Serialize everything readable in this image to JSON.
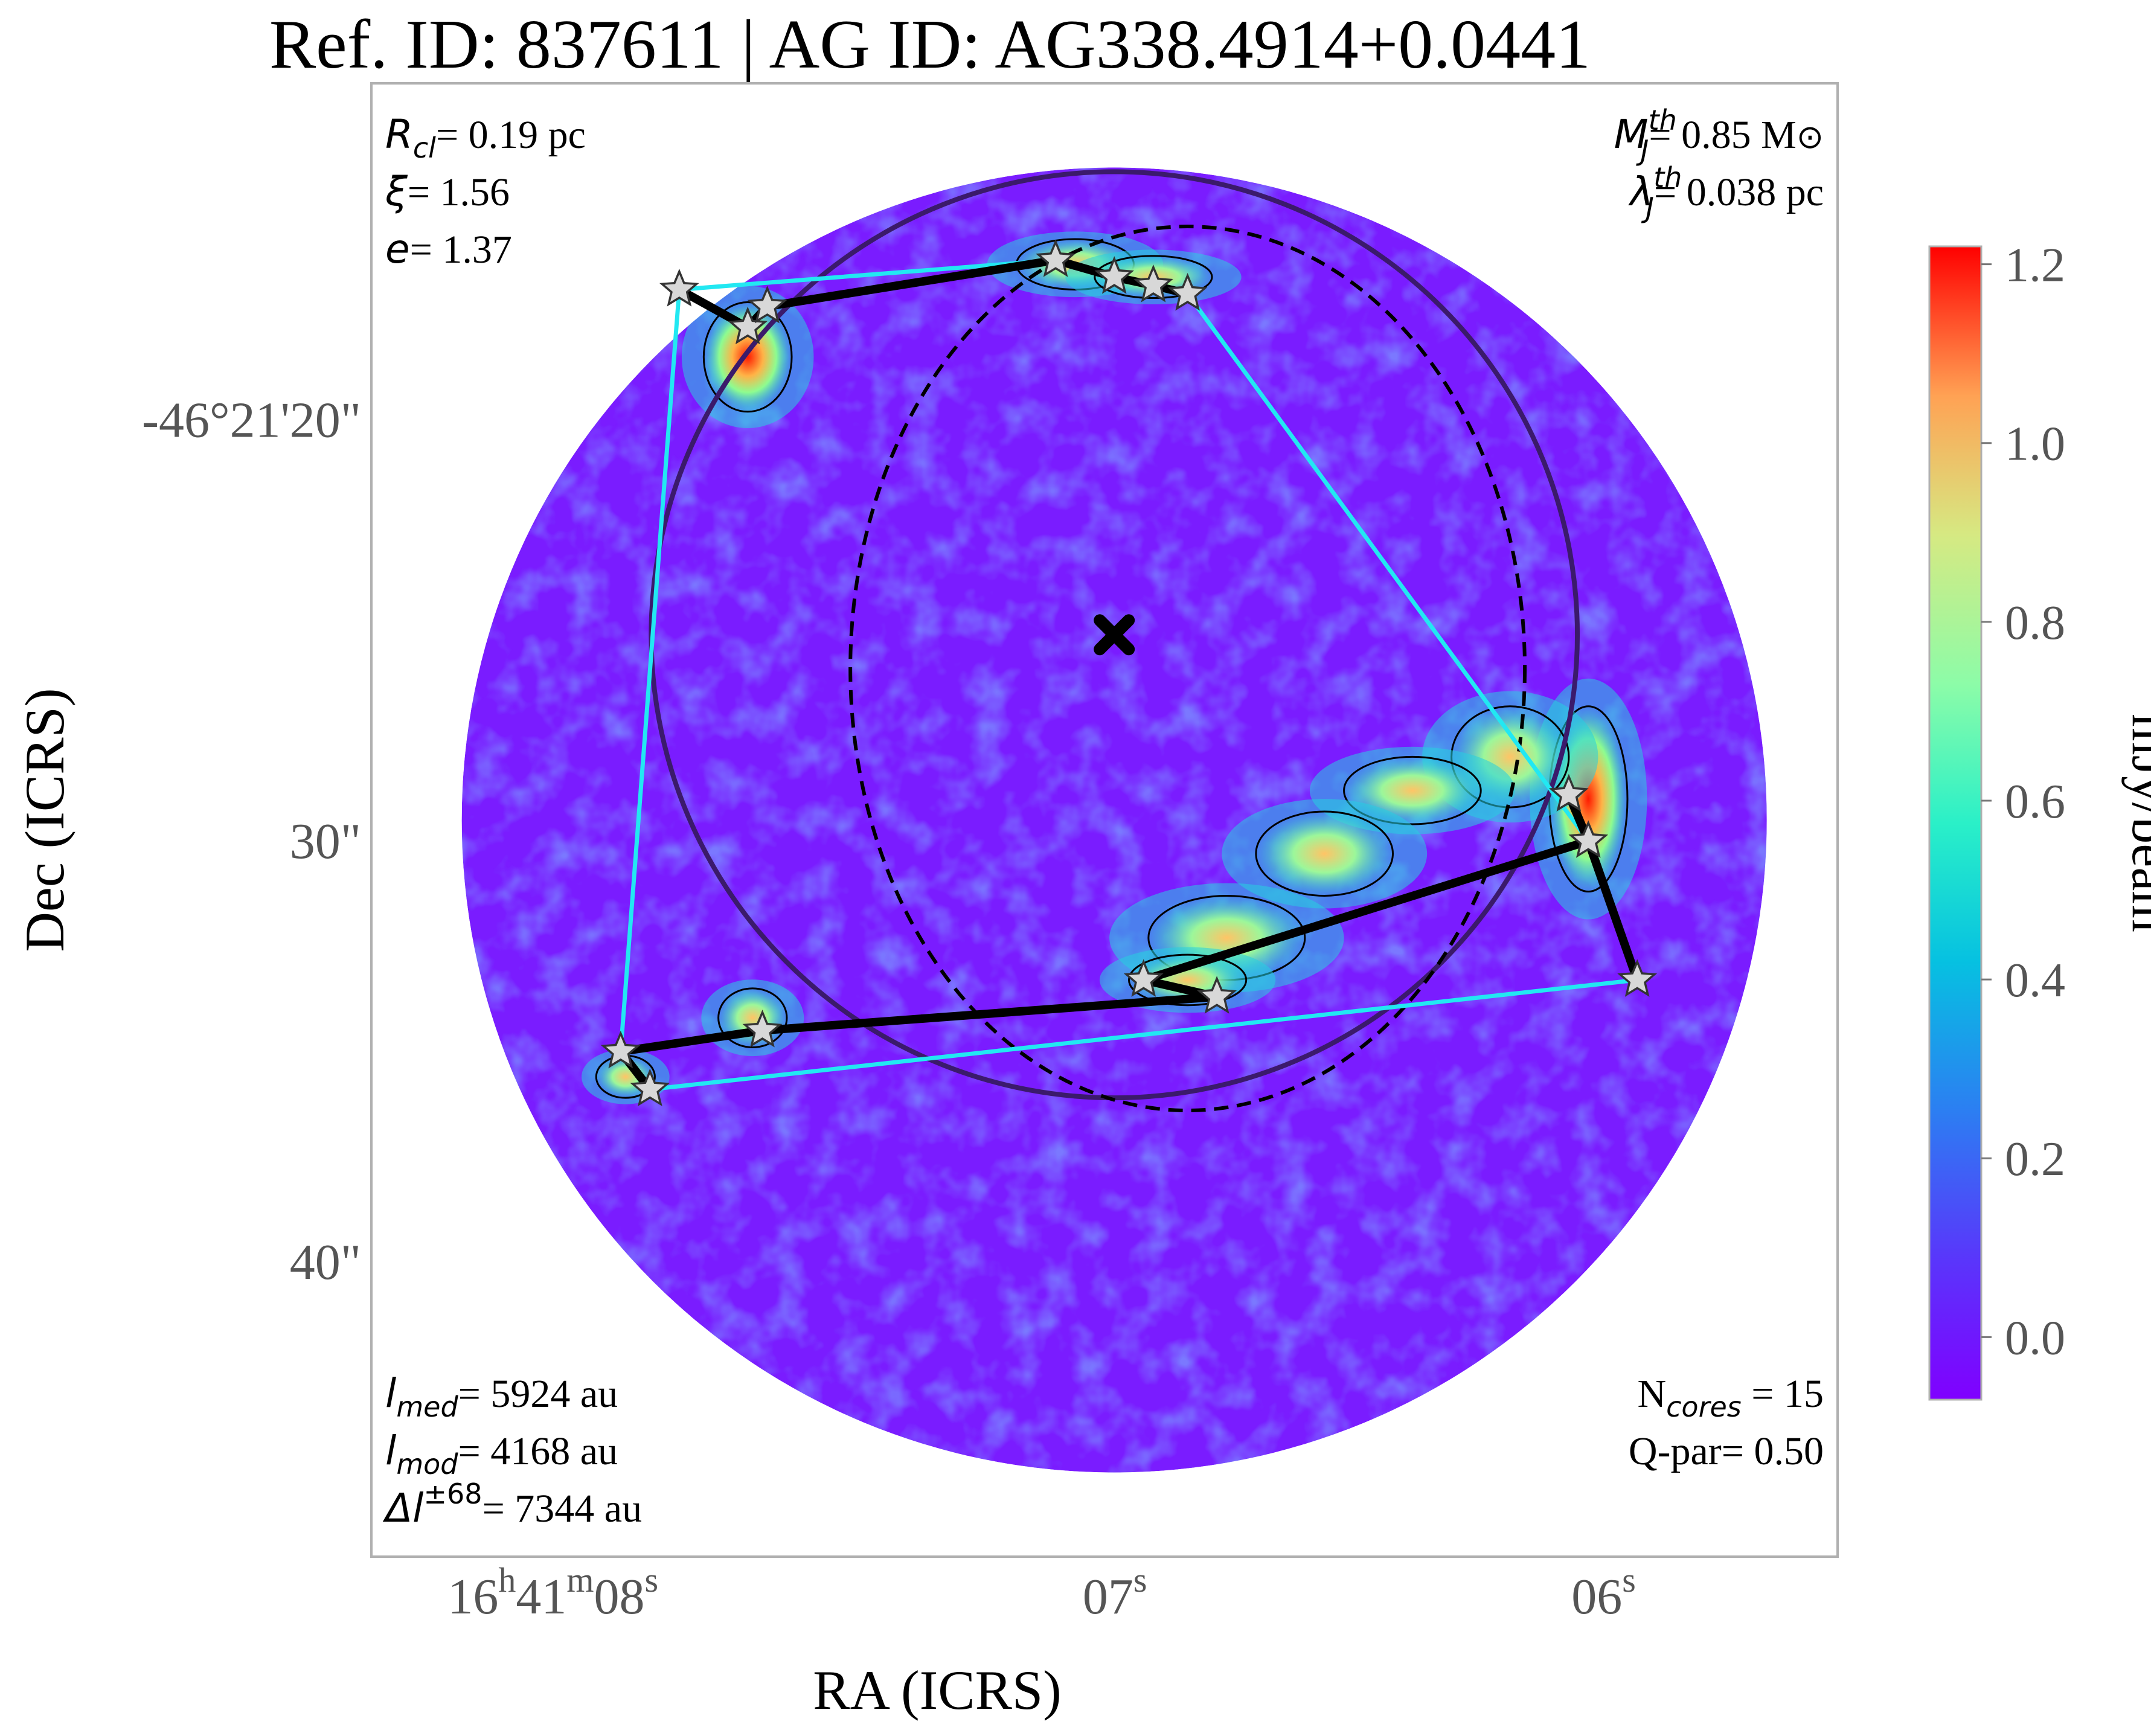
{
  "chart_data": {
    "type": "scatter",
    "title": "Ref. ID: 837611 | AG ID: AG338.4914+0.0441",
    "xlabel": "RA (ICRS)",
    "ylabel": "Dec (ICRS)",
    "x_ticks": [
      {
        "h": "16",
        "hs": "h",
        "m": "41",
        "ms": "m",
        "s": "08",
        "ss": "s",
        "ra_sec": 8.0
      },
      {
        "s": "07",
        "ss": "s",
        "ra_sec": 7.0
      },
      {
        "s": "06",
        "ss": "s",
        "ra_sec": 6.0
      }
    ],
    "y_ticks": [
      {
        "label": "-46°21'20\"",
        "dec_arcsec": 20
      },
      {
        "label": "30\"",
        "dec_arcsec": 30
      },
      {
        "label": "40\"",
        "dec_arcsec": 40
      }
    ],
    "xlim": [
      8.55,
      5.55
    ],
    "ylim": [
      47.0,
      12.0
    ],
    "colorbar": {
      "label": "mJy/beam",
      "range": [
        -0.07,
        1.22
      ],
      "ticks": [
        "0.0",
        "0.2",
        "0.4",
        "0.6",
        "0.8",
        "1.0",
        "1.2"
      ],
      "tick_values": [
        0.0,
        0.2,
        0.4,
        0.6,
        0.8,
        1.0,
        1.2
      ],
      "colormap": "rainbow"
    },
    "annotations": {
      "top_left": [
        {
          "sym": "R",
          "sub": "cl",
          "val": "= 0.19 pc"
        },
        {
          "sym": "ξ",
          "val": "= 1.56"
        },
        {
          "sym": "e",
          "val": "= 1.37"
        }
      ],
      "top_right": [
        {
          "sym": "M",
          "sub": "J",
          "sup": "th",
          "val": "= 0.85 M",
          "sun": "⊙"
        },
        {
          "sym": "λ",
          "sub": "J",
          "sup": "th",
          "val": "= 0.038 pc"
        }
      ],
      "bottom_left": [
        {
          "sym": "l",
          "sub": "med",
          "val": "= 5924 au"
        },
        {
          "sym": "l",
          "sub": "mod",
          "val": "= 4168 au"
        },
        {
          "sym": "Δl",
          "sup": "±68",
          "val": "= 7344 au"
        }
      ],
      "bottom_right": [
        {
          "pre": "N",
          "sub": "cores",
          "val": " = 15"
        },
        {
          "pre": "Q-par",
          "val": "= 0.50"
        }
      ]
    },
    "center_marker": {
      "ra_sec": 7.03,
      "dec_arcsec": 25.1
    },
    "field_circle": {
      "ra_sec": 7.03,
      "dec_arcsec": 29.5,
      "radius_arcsec": 15.5
    },
    "clump_circle": {
      "ra_sec": 7.03,
      "dec_arcsec": 25.1,
      "radius_arcsec": 11.0
    },
    "dashed_ellipse": {
      "ra_sec": 6.88,
      "dec_arcsec": 25.9,
      "semi_ra_sec": 0.69,
      "semi_dec_arcsec": 10.5
    },
    "cores": [
      {
        "ra_sec": 7.92,
        "dec_arcsec": 16.9
      },
      {
        "ra_sec": 7.78,
        "dec_arcsec": 17.8
      },
      {
        "ra_sec": 7.74,
        "dec_arcsec": 17.3
      },
      {
        "ra_sec": 7.15,
        "dec_arcsec": 16.2
      },
      {
        "ra_sec": 7.03,
        "dec_arcsec": 16.6
      },
      {
        "ra_sec": 6.95,
        "dec_arcsec": 16.8
      },
      {
        "ra_sec": 6.88,
        "dec_arcsec": 17.0
      },
      {
        "ra_sec": 6.1,
        "dec_arcsec": 28.9
      },
      {
        "ra_sec": 6.06,
        "dec_arcsec": 30.0
      },
      {
        "ra_sec": 5.96,
        "dec_arcsec": 33.3
      },
      {
        "ra_sec": 6.97,
        "dec_arcsec": 33.3
      },
      {
        "ra_sec": 6.82,
        "dec_arcsec": 33.7
      },
      {
        "ra_sec": 7.75,
        "dec_arcsec": 34.5
      },
      {
        "ra_sec": 8.04,
        "dec_arcsec": 35.0
      },
      {
        "ra_sec": 7.98,
        "dec_arcsec": 35.9
      }
    ],
    "mst_edges": [
      [
        0,
        1
      ],
      [
        1,
        2
      ],
      [
        2,
        3
      ],
      [
        3,
        4
      ],
      [
        4,
        5
      ],
      [
        5,
        6
      ],
      [
        7,
        8
      ],
      [
        8,
        9
      ],
      [
        8,
        10
      ],
      [
        10,
        11
      ],
      [
        11,
        12
      ],
      [
        12,
        13
      ],
      [
        13,
        14
      ]
    ],
    "hull": [
      0,
      3,
      6,
      8,
      9,
      14,
      13
    ],
    "contour_blobs": [
      {
        "ra_sec": 7.78,
        "dec_arcsec": 18.5,
        "rx": 0.09,
        "ry": 1.3,
        "peak": 1.2
      },
      {
        "ra_sec": 7.11,
        "dec_arcsec": 16.3,
        "rx": 0.12,
        "ry": 0.6,
        "peak": 0.7
      },
      {
        "ra_sec": 6.95,
        "dec_arcsec": 16.6,
        "rx": 0.12,
        "ry": 0.5,
        "peak": 0.6
      },
      {
        "ra_sec": 6.06,
        "dec_arcsec": 29.0,
        "rx": 0.08,
        "ry": 2.2,
        "peak": 1.2
      },
      {
        "ra_sec": 6.22,
        "dec_arcsec": 28.0,
        "rx": 0.12,
        "ry": 1.2,
        "peak": 0.6
      },
      {
        "ra_sec": 6.42,
        "dec_arcsec": 28.8,
        "rx": 0.14,
        "ry": 0.8,
        "peak": 0.55
      },
      {
        "ra_sec": 6.6,
        "dec_arcsec": 30.3,
        "rx": 0.14,
        "ry": 1.0,
        "peak": 0.7
      },
      {
        "ra_sec": 6.8,
        "dec_arcsec": 32.3,
        "rx": 0.16,
        "ry": 1.0,
        "peak": 0.75
      },
      {
        "ra_sec": 6.88,
        "dec_arcsec": 33.3,
        "rx": 0.12,
        "ry": 0.6,
        "peak": 0.6
      },
      {
        "ra_sec": 7.77,
        "dec_arcsec": 34.2,
        "rx": 0.07,
        "ry": 0.7,
        "peak": 0.65
      },
      {
        "ra_sec": 8.03,
        "dec_arcsec": 35.6,
        "rx": 0.06,
        "ry": 0.5,
        "peak": 0.9
      }
    ],
    "grid": false
  }
}
